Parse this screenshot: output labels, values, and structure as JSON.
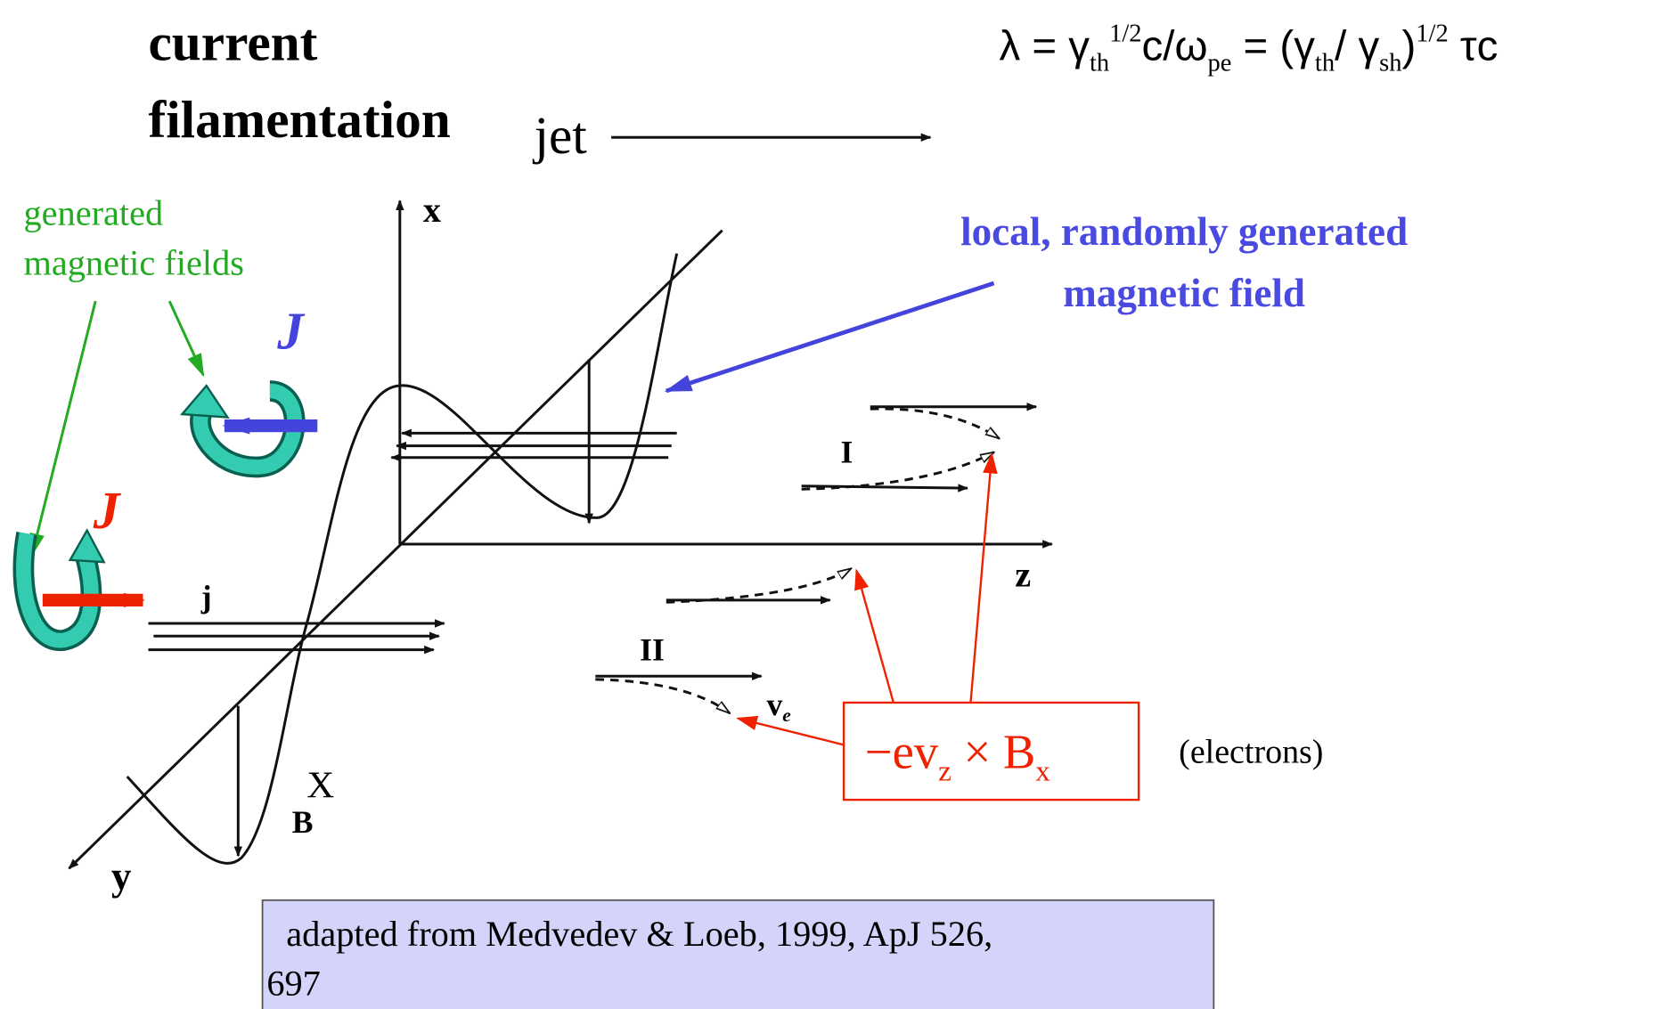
{
  "title": {
    "line1": "current",
    "line2": "filamentation"
  },
  "jet": "jet",
  "formula": [
    "λ = γ",
    "th",
    "1/2",
    "c/ω",
    "pe",
    " = (γ",
    "th",
    "/ γ",
    "sh",
    ")",
    "1/2",
    " τc"
  ],
  "green_label": [
    "generated",
    "magnetic fields"
  ],
  "current_symbols": [
    "J",
    "J"
  ],
  "blue_label": [
    "local, randomly generated",
    "magnetic field"
  ],
  "axes": {
    "x": "x",
    "z": "z",
    "y": "y"
  },
  "diagram_labels": {
    "j": "j",
    "X": "X",
    "B": "B",
    "I": "I",
    "II": "II",
    "v": "v",
    "e": "e"
  },
  "force": [
    "−ev",
    "z",
    " × B",
    "x"
  ],
  "electrons": "(electrons)",
  "caption": [
    " adapted from Medvedev & Loeb, 1999, ApJ 526,",
    "697"
  ]
}
